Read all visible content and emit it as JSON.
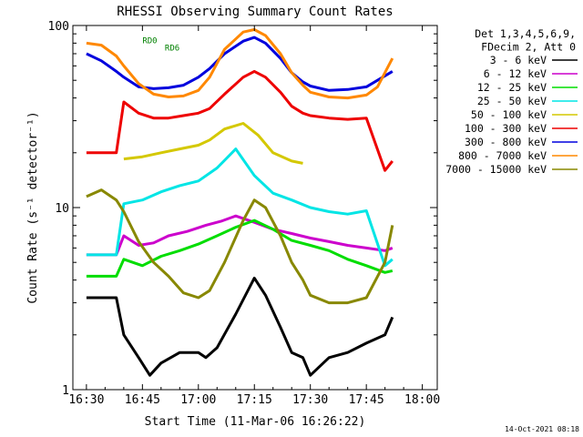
{
  "chart_data": {
    "type": "line",
    "title": "RHESSI Observing Summary Count Rates",
    "xlabel": "Start Time (11-Mar-06 16:26:22)",
    "ylabel": "Count Rate (s⁻¹ detector⁻¹)",
    "yscale": "log",
    "ylim": [
      1,
      100
    ],
    "xlim": [
      "16:26:22",
      "18:04:00"
    ],
    "x_ticks": [
      "16:30",
      "16:45",
      "17:00",
      "17:15",
      "17:30",
      "17:45",
      "18:00"
    ],
    "x_tick_minutes": [
      30,
      45,
      60,
      75,
      90,
      105,
      120
    ],
    "y_ticks": [
      "1",
      "10",
      "100"
    ],
    "y_tick_values": [
      1,
      10,
      100
    ],
    "legend_header": [
      "Det 1,3,4,5,6,9,",
      "FDecim 2, Att 0"
    ],
    "legend_position": "right",
    "annotations": [
      {
        "text": "RD0",
        "x": "16:45",
        "y": 80,
        "color": "#008000"
      },
      {
        "text": "RD6",
        "x": "16:51",
        "y": 73,
        "color": "#008000"
      }
    ],
    "footer_date": "14-Oct-2021 08:18",
    "series": [
      {
        "name": "3 - 6 keV",
        "color": "#000000",
        "x": [
          30,
          38,
          40,
          44,
          47,
          50,
          55,
          60,
          62,
          65,
          70,
          75,
          78,
          82,
          85,
          88,
          90,
          95,
          100,
          105,
          110,
          112
        ],
        "y": [
          3.2,
          3.2,
          2.0,
          1.5,
          1.2,
          1.4,
          1.6,
          1.6,
          1.5,
          1.7,
          2.6,
          4.1,
          3.3,
          2.2,
          1.6,
          1.5,
          1.2,
          1.5,
          1.6,
          1.8,
          2.0,
          2.5
        ]
      },
      {
        "name": "6 - 12 keV",
        "color": "#cc00cc",
        "x": [
          30,
          38,
          40,
          44,
          48,
          52,
          57,
          62,
          66,
          70,
          75,
          80,
          85,
          90,
          95,
          100,
          105,
          110,
          112
        ],
        "y": [
          5.5,
          5.5,
          7.0,
          6.2,
          6.4,
          7.0,
          7.4,
          8.0,
          8.4,
          9.0,
          8.3,
          7.6,
          7.2,
          6.8,
          6.5,
          6.2,
          6.0,
          5.8,
          6.0
        ]
      },
      {
        "name": "12 - 25 keV",
        "color": "#00dd00",
        "x": [
          30,
          38,
          40,
          45,
          50,
          55,
          60,
          65,
          70,
          75,
          80,
          85,
          90,
          95,
          100,
          105,
          110,
          112
        ],
        "y": [
          4.2,
          4.2,
          5.2,
          4.8,
          5.4,
          5.8,
          6.3,
          7.0,
          7.8,
          8.5,
          7.6,
          6.6,
          6.2,
          5.8,
          5.2,
          4.8,
          4.4,
          4.5
        ]
      },
      {
        "name": "25 - 50 keV",
        "color": "#00e5e5",
        "x": [
          30,
          38,
          40,
          45,
          50,
          55,
          60,
          65,
          70,
          75,
          80,
          85,
          90,
          95,
          100,
          105,
          110,
          112
        ],
        "y": [
          5.5,
          5.5,
          10.5,
          11.0,
          12.2,
          13.2,
          14.0,
          16.5,
          21.0,
          15.0,
          12.0,
          11.0,
          10.0,
          9.5,
          9.2,
          9.6,
          4.8,
          5.2
        ]
      },
      {
        "name": "50 - 100 keV",
        "color": "#d4c800",
        "x": [
          40,
          45,
          50,
          55,
          60,
          63,
          67,
          72,
          76,
          80,
          85,
          88
        ],
        "y": [
          18.5,
          19.0,
          20.0,
          21.0,
          22.0,
          23.5,
          27.0,
          29.0,
          25.0,
          20.0,
          18.0,
          17.5
        ]
      },
      {
        "name": "100 - 300 keV",
        "color": "#ee0000",
        "x": [
          30,
          38,
          40,
          44,
          48,
          52,
          56,
          60,
          63,
          67,
          72,
          75,
          78,
          82,
          85,
          88,
          90,
          95,
          100,
          105,
          110,
          112
        ],
        "y": [
          20.0,
          20.0,
          38.0,
          33.0,
          31.0,
          31.0,
          32.0,
          33.0,
          35.0,
          42.0,
          52.0,
          56.0,
          52.0,
          43.0,
          36.0,
          33.0,
          32.0,
          31.0,
          30.5,
          31.0,
          16.0,
          18.0
        ]
      },
      {
        "name": "300 - 800 keV",
        "color": "#0000dd",
        "x": [
          30,
          34,
          38,
          40,
          44,
          48,
          52,
          56,
          60,
          63,
          67,
          72,
          75,
          78,
          82,
          85,
          88,
          90,
          95,
          100,
          105,
          108,
          112
        ],
        "y": [
          70.0,
          64.0,
          56.0,
          52.0,
          46.0,
          45.0,
          45.5,
          47.0,
          52.0,
          58.0,
          70.0,
          82.0,
          86.0,
          80.0,
          66.0,
          55.0,
          49.0,
          46.5,
          44.0,
          44.5,
          46.0,
          50.0,
          56.0
        ]
      },
      {
        "name": "800 - 7000 keV",
        "color": "#ff8800",
        "x": [
          30,
          34,
          38,
          40,
          44,
          48,
          52,
          56,
          60,
          63,
          67,
          72,
          75,
          78,
          82,
          85,
          88,
          90,
          95,
          100,
          105,
          108,
          112
        ],
        "y": [
          80.0,
          78.0,
          68.0,
          60.0,
          48.0,
          42.0,
          40.5,
          41.0,
          44.0,
          52.0,
          74.0,
          92.0,
          95.0,
          88.0,
          70.0,
          55.0,
          47.0,
          43.0,
          40.5,
          40.0,
          41.5,
          46.0,
          66.0
        ]
      },
      {
        "name": "7000 - 15000 keV",
        "color": "#888800",
        "x": [
          30,
          34,
          38,
          40,
          44,
          48,
          52,
          56,
          60,
          63,
          67,
          72,
          75,
          78,
          82,
          85,
          88,
          90,
          95,
          100,
          105,
          110,
          112
        ],
        "y": [
          11.5,
          12.5,
          11.0,
          9.5,
          6.5,
          5.0,
          4.2,
          3.4,
          3.2,
          3.5,
          5.0,
          8.5,
          11.0,
          10.0,
          7.0,
          5.0,
          4.0,
          3.3,
          3.0,
          3.0,
          3.2,
          5.0,
          8.0
        ]
      }
    ]
  }
}
